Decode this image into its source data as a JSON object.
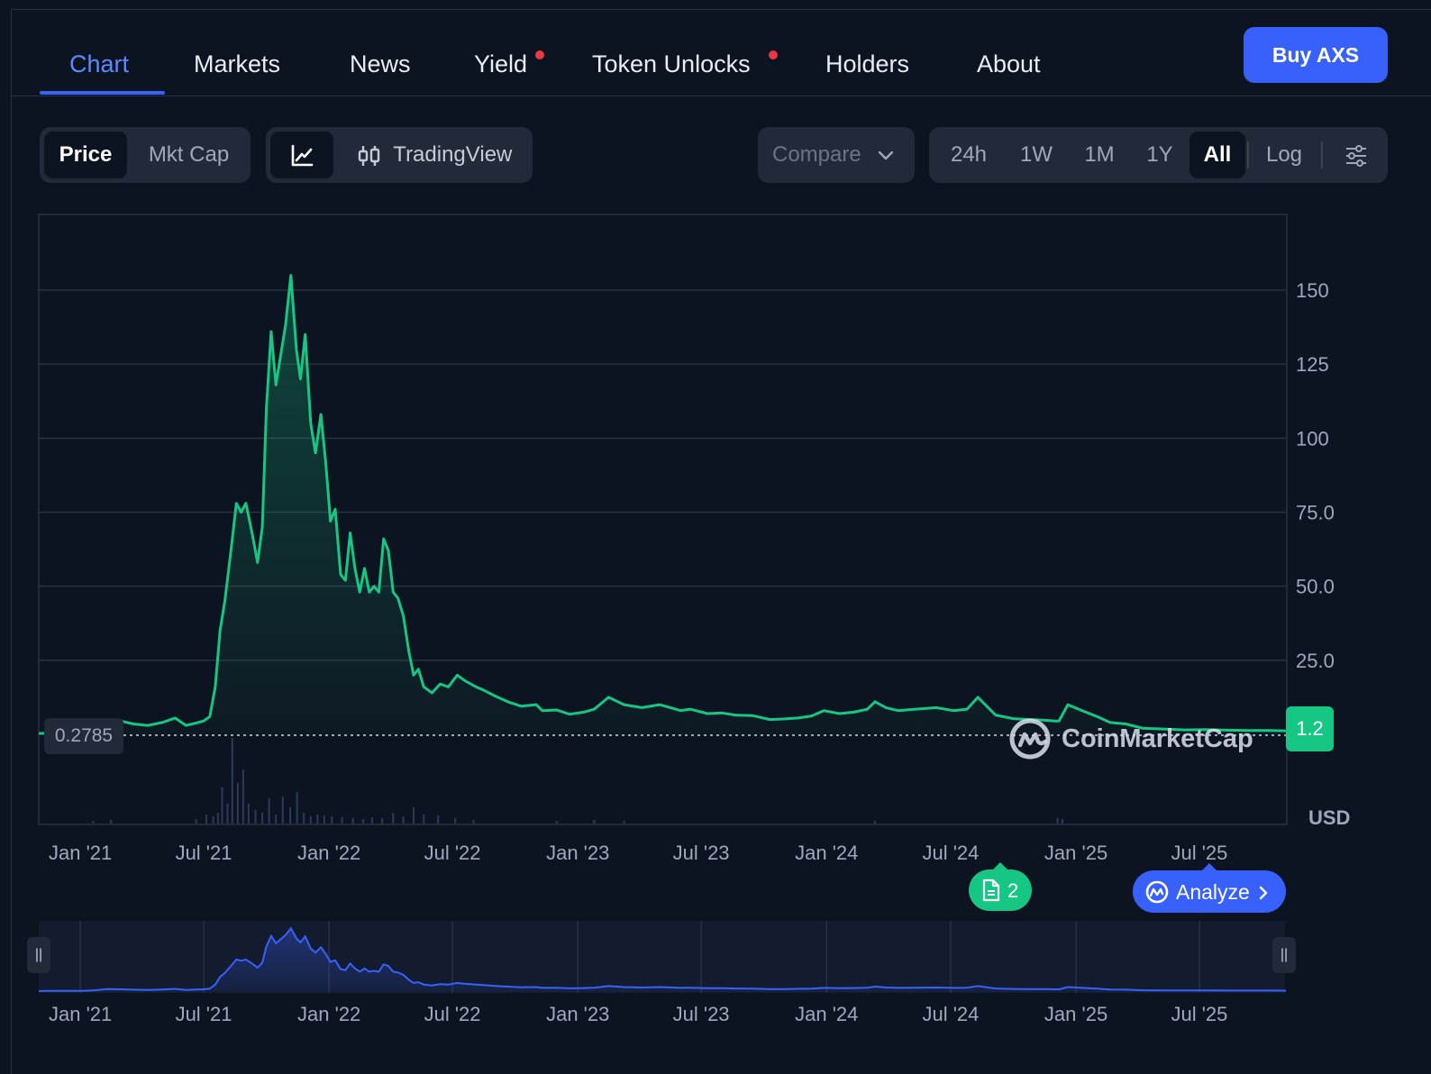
{
  "tabs": [
    {
      "label": "Chart",
      "active": true,
      "dot": false
    },
    {
      "label": "Markets",
      "active": false,
      "dot": false
    },
    {
      "label": "News",
      "active": false,
      "dot": false
    },
    {
      "label": "Yield",
      "active": false,
      "dot": true
    },
    {
      "label": "Token Unlocks",
      "active": false,
      "dot": true
    },
    {
      "label": "Holders",
      "active": false,
      "dot": false
    },
    {
      "label": "About",
      "active": false,
      "dot": false
    }
  ],
  "buy_button": "Buy AXS",
  "toolbar": {
    "price": "Price",
    "mkt_cap": "Mkt Cap",
    "tradingview": "TradingView",
    "compare": "Compare",
    "ranges": [
      "24h",
      "1W",
      "1M",
      "1Y",
      "All"
    ],
    "selected_range": "All",
    "log": "Log"
  },
  "colors": {
    "line": "#16c784",
    "accent": "#3861fb",
    "background": "#0d1421",
    "notification_dot": "#ea3943"
  },
  "chart_data": {
    "type": "area",
    "currency_label": "USD",
    "y_ticks": [
      25,
      50,
      75,
      100,
      125,
      150
    ],
    "y_tick_labels": [
      "25.0",
      "50.0",
      "75.0",
      "100",
      "125",
      "150"
    ],
    "ylim": [
      0,
      175
    ],
    "x_ticks": [
      "Jan '21",
      "Jul '21",
      "Jan '22",
      "Jul '22",
      "Jan '23",
      "Jul '23",
      "Jan '24",
      "Jul '24",
      "Jan '25",
      "Jul '25"
    ],
    "x_tick_dates": [
      "2021-01-01",
      "2021-07-01",
      "2022-01-01",
      "2022-07-01",
      "2023-01-01",
      "2023-07-01",
      "2024-01-01",
      "2024-07-01",
      "2025-01-01",
      "2025-07-01"
    ],
    "xlim": [
      "2020-11-01",
      "2025-11-05"
    ],
    "min_price_label": "0.2785",
    "current_price_label": "1.2",
    "series": [
      {
        "x": [
          "2020-11-01",
          "2020-11-20",
          "2020-12-10",
          "2021-01-01",
          "2021-01-20",
          "2021-02-10",
          "2021-03-01",
          "2021-03-20",
          "2021-04-10",
          "2021-05-01",
          "2021-05-20",
          "2021-06-05",
          "2021-06-20",
          "2021-07-01",
          "2021-07-10",
          "2021-07-18",
          "2021-07-25",
          "2021-08-01",
          "2021-08-10",
          "2021-08-18",
          "2021-08-25",
          "2021-09-01",
          "2021-09-10",
          "2021-09-18",
          "2021-09-25",
          "2021-10-01",
          "2021-10-08",
          "2021-10-15",
          "2021-10-22",
          "2021-10-29",
          "2021-11-06",
          "2021-11-14",
          "2021-11-20",
          "2021-11-27",
          "2021-12-05",
          "2021-12-12",
          "2021-12-20",
          "2021-12-27",
          "2022-01-03",
          "2022-01-10",
          "2022-01-18",
          "2022-01-25",
          "2022-02-01",
          "2022-02-08",
          "2022-02-15",
          "2022-02-22",
          "2022-03-01",
          "2022-03-08",
          "2022-03-15",
          "2022-03-22",
          "2022-03-29",
          "2022-04-05",
          "2022-04-12",
          "2022-04-20",
          "2022-04-28",
          "2022-05-05",
          "2022-05-12",
          "2022-05-20",
          "2022-06-01",
          "2022-06-13",
          "2022-06-25",
          "2022-07-08",
          "2022-07-20",
          "2022-08-05",
          "2022-08-15",
          "2022-09-01",
          "2022-09-20",
          "2022-10-10",
          "2022-11-01",
          "2022-11-10",
          "2022-12-01",
          "2022-12-20",
          "2023-01-10",
          "2023-01-25",
          "2023-02-15",
          "2023-03-10",
          "2023-04-05",
          "2023-05-01",
          "2023-06-01",
          "2023-06-15",
          "2023-07-10",
          "2023-08-01",
          "2023-08-20",
          "2023-09-15",
          "2023-10-10",
          "2023-11-01",
          "2023-11-20",
          "2023-12-10",
          "2023-12-28",
          "2024-01-20",
          "2024-02-10",
          "2024-03-01",
          "2024-03-12",
          "2024-03-28",
          "2024-04-15",
          "2024-05-10",
          "2024-06-10",
          "2024-07-05",
          "2024-07-25",
          "2024-08-10",
          "2024-09-05",
          "2024-10-01",
          "2024-10-25",
          "2024-11-15",
          "2024-12-01",
          "2024-12-07",
          "2024-12-20",
          "2025-01-10",
          "2025-02-01",
          "2025-02-20",
          "2025-03-15",
          "2025-04-10",
          "2025-05-10",
          "2025-06-10",
          "2025-07-10",
          "2025-08-10",
          "2025-09-10",
          "2025-10-10",
          "2025-11-05"
        ],
        "y": [
          0.3,
          0.35,
          0.45,
          0.5,
          1.5,
          5.0,
          4.5,
          3.5,
          3.0,
          4.0,
          5.5,
          3.0,
          3.8,
          4.5,
          6.0,
          16.0,
          35.0,
          45.0,
          62.0,
          78.0,
          75.0,
          78.0,
          68.0,
          58.0,
          70.0,
          110.0,
          136.0,
          118.0,
          128.0,
          138.0,
          155.0,
          130.0,
          120.0,
          135.0,
          105.0,
          95.0,
          108.0,
          92.0,
          72.0,
          76.0,
          54.0,
          52.0,
          68.0,
          56.0,
          48.0,
          56.0,
          48.0,
          50.0,
          48.0,
          66.0,
          62.0,
          48.0,
          46.0,
          40.0,
          28.0,
          20.0,
          22.0,
          16.0,
          14.0,
          17.0,
          16.0,
          20.0,
          18.0,
          16.0,
          15.0,
          13.0,
          11.0,
          9.5,
          10.0,
          8.0,
          8.2,
          6.8,
          7.5,
          8.5,
          12.5,
          10.0,
          9.0,
          10.0,
          8.0,
          8.5,
          7.0,
          7.2,
          6.5,
          6.3,
          5.0,
          5.2,
          5.5,
          6.2,
          8.0,
          7.0,
          7.5,
          8.5,
          11.0,
          9.0,
          8.0,
          8.5,
          9.0,
          8.0,
          8.5,
          12.5,
          6.5,
          5.3,
          5.0,
          4.8,
          4.5,
          4.5,
          10.0,
          8.0,
          6.0,
          4.0,
          3.5,
          2.0,
          1.8,
          1.5,
          1.6,
          1.4,
          1.3,
          1.3,
          1.2
        ]
      }
    ],
    "volume": {
      "x": [
        "2021-01-20",
        "2021-02-15",
        "2021-06-20",
        "2021-07-05",
        "2021-07-15",
        "2021-07-22",
        "2021-07-28",
        "2021-08-05",
        "2021-08-12",
        "2021-08-20",
        "2021-08-28",
        "2021-09-05",
        "2021-09-15",
        "2021-09-25",
        "2021-10-05",
        "2021-10-15",
        "2021-10-25",
        "2021-11-05",
        "2021-11-15",
        "2021-11-25",
        "2021-12-05",
        "2021-12-15",
        "2021-12-25",
        "2022-01-05",
        "2022-01-20",
        "2022-02-05",
        "2022-02-20",
        "2022-03-05",
        "2022-03-20",
        "2022-04-05",
        "2022-04-20",
        "2022-05-05",
        "2022-05-20",
        "2022-06-10",
        "2022-07-05",
        "2022-08-01",
        "2022-12-01",
        "2023-01-25",
        "2023-03-10",
        "2024-03-12",
        "2024-12-05",
        "2024-12-12"
      ],
      "values": [
        3,
        4,
        5,
        10,
        8,
        12,
        40,
        22,
        95,
        45,
        60,
        22,
        15,
        12,
        28,
        10,
        30,
        18,
        35,
        12,
        8,
        10,
        9,
        8,
        7,
        6,
        5,
        7,
        6,
        12,
        8,
        18,
        10,
        9,
        6,
        4,
        3,
        4,
        3,
        3,
        6,
        5
      ]
    }
  },
  "news_badge": "2",
  "analyze": "Analyze",
  "navigator": {
    "x_ticks": [
      "Jan '21",
      "Jul '21",
      "Jan '22",
      "Jul '22",
      "Jan '23",
      "Jul '23",
      "Jan '24",
      "Jul '24",
      "Jan '25",
      "Jul '25"
    ]
  },
  "watermark": "CoinMarketCap"
}
